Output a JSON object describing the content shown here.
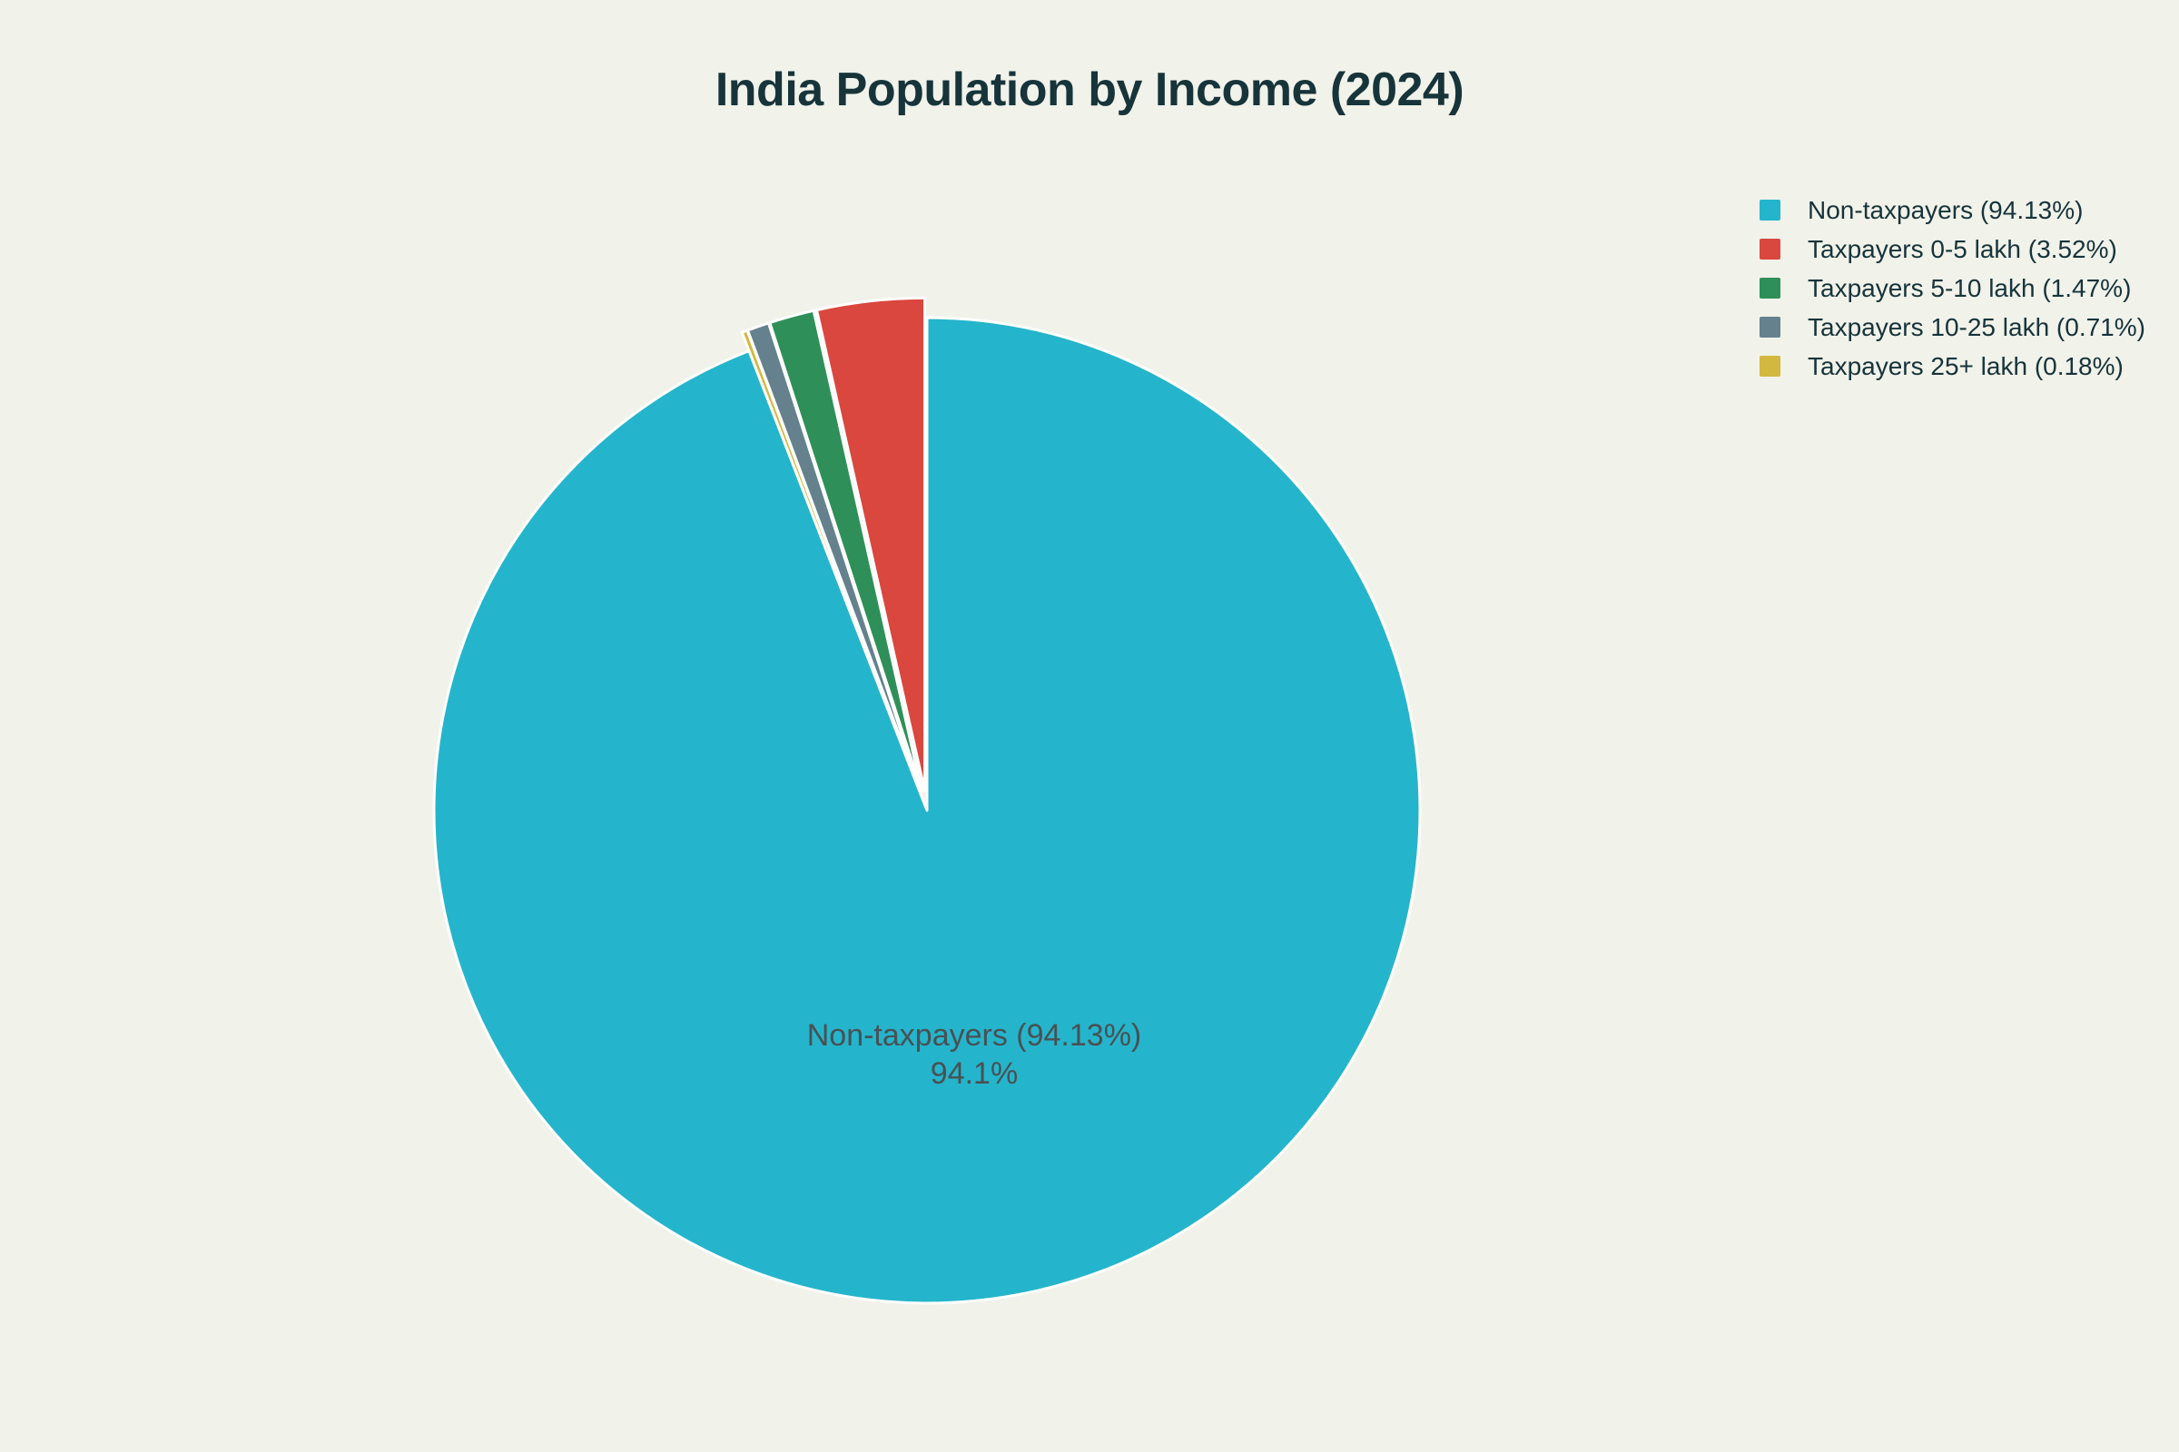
{
  "chart_data": {
    "type": "pie",
    "title": "India Population by Income (2024)",
    "slices": [
      {
        "label": "Non-taxpayers (94.13%)",
        "category": "Non-taxpayers",
        "value": 94.13,
        "color": "#24B5CC",
        "pull": 0
      },
      {
        "label": "Taxpayers 0-5 lakh (3.52%)",
        "category": "Taxpayers 0-5 lakh",
        "value": 3.52,
        "color": "#D9473F",
        "pull": 0.04
      },
      {
        "label": "Taxpayers 5-10 lakh (1.47%)",
        "category": "Taxpayers 5-10 lakh",
        "value": 1.47,
        "color": "#2E9058",
        "pull": 0.04
      },
      {
        "label": "Taxpayers 10-25 lakh (0.71%)",
        "category": "Taxpayers 10-25 lakh",
        "value": 0.71,
        "color": "#64818D",
        "pull": 0.04
      },
      {
        "label": "Taxpayers 25+ lakh (0.18%)",
        "category": "Taxpayers 25+ lakh",
        "value": 0.18,
        "color": "#D3B83F",
        "pull": 0.04
      }
    ],
    "values_unit": "percent of population",
    "start_angle": "12 o'clock",
    "winding": "largest slice sweeps clockwise from top; remaining slices fill back counterclockwise from top in listed order",
    "inside_label": {
      "line1": "Non-taxpayers (94.13%)",
      "line2": "94.1%"
    },
    "legend_position": "top-right",
    "style": {
      "background": "#F1F2EA",
      "title_color": "#17343A",
      "legend_text_color": "#17343A",
      "inside_label_color": "#4A5053",
      "slice_border_color": "#FFFFFF"
    }
  }
}
